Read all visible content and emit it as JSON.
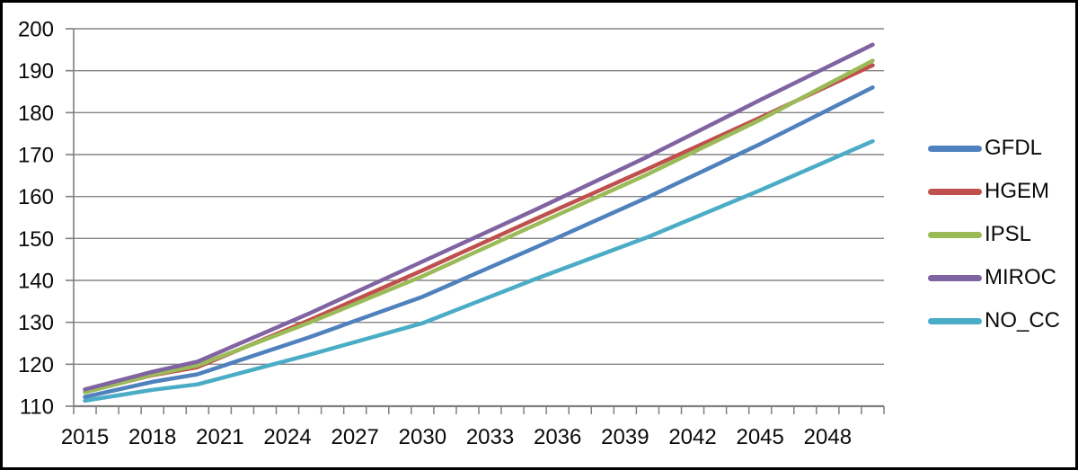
{
  "figure": {
    "background": "#ffffff",
    "border_color": "#000000"
  },
  "chart_data": {
    "type": "line",
    "title": "",
    "xlabel": "",
    "ylabel": "",
    "x": [
      2015,
      2018,
      2020,
      2025,
      2030,
      2035,
      2040,
      2045,
      2050
    ],
    "series": [
      {
        "name": "GFDL",
        "color": "#4F81BD",
        "values": [
          112.2,
          115.8,
          117.6,
          126.5,
          136.1,
          147.8,
          159.8,
          172.5,
          186.0
        ]
      },
      {
        "name": "HGEM",
        "color": "#C0504D",
        "values": [
          113.4,
          117.4,
          119.3,
          130.6,
          142.4,
          154.6,
          166.6,
          178.8,
          191.3
        ]
      },
      {
        "name": "IPSL",
        "color": "#9BBB59",
        "values": [
          113.3,
          117.5,
          119.7,
          130.0,
          141.0,
          153.2,
          165.3,
          178.3,
          192.4
        ]
      },
      {
        "name": "MIROC",
        "color": "#8064A2",
        "values": [
          114.0,
          118.2,
          120.6,
          132.2,
          144.5,
          156.8,
          169.5,
          183.0,
          196.2
        ]
      },
      {
        "name": "NO_CC",
        "color": "#4BACC6",
        "values": [
          111.3,
          113.9,
          115.2,
          122.3,
          129.8,
          140.3,
          150.3,
          161.5,
          173.2
        ]
      }
    ],
    "x_axis": {
      "start_year": 2015,
      "end_year": 2050,
      "tick_interval_years": 1,
      "label_years": [
        2015,
        2018,
        2021,
        2024,
        2027,
        2030,
        2033,
        2036,
        2039,
        2042,
        2045,
        2048
      ]
    },
    "y_axis": {
      "min": 110,
      "max": 200,
      "step": 10,
      "tick_labels": [
        "200",
        "190",
        "180",
        "170",
        "160",
        "150",
        "140",
        "130",
        "120",
        "110"
      ]
    },
    "grid": true,
    "legend": {
      "position": "right",
      "entries": [
        "GFDL",
        "HGEM",
        "IPSL",
        "MIROC",
        "NO_CC"
      ]
    },
    "colors": {
      "grid": "#848484",
      "axis": "#7f7f7f",
      "text": "#0a0a0a"
    }
  }
}
